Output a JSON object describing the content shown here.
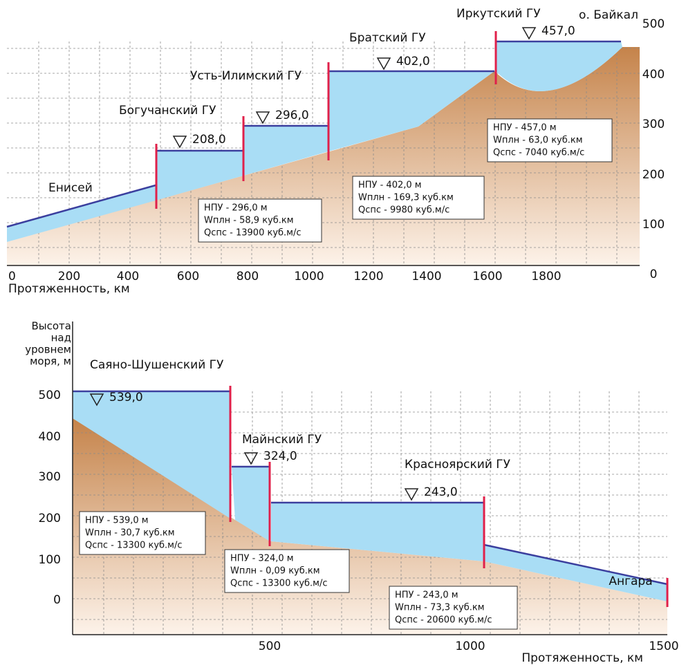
{
  "top_profile": {
    "river_label": "Енисей",
    "lake_label": "о. Байкал",
    "dams": [
      {
        "name": "Богучанский ГУ",
        "level": "208,0"
      },
      {
        "name": "Усть-Илимский ГУ",
        "level": "296,0"
      },
      {
        "name": "Братский ГУ",
        "level": "402,0"
      },
      {
        "name": "Иркутский ГУ",
        "level": "457,0"
      }
    ],
    "info_boxes": [
      [
        "НПУ - 296,0 м",
        "Wплн - 58,9 куб.км",
        "Qспс - 13900 куб.м/с"
      ],
      [
        "НПУ - 402,0 м",
        "Wплн - 169,3 куб.км",
        "Qспс - 9980 куб.м/с"
      ],
      [
        "НПУ - 457,0 м",
        "Wплн - 63,0 куб.км",
        "Qспс - 7040 куб.м/с"
      ]
    ],
    "y_ticks": [
      "500",
      "400",
      "300",
      "200",
      "100",
      "0"
    ],
    "x_ticks": [
      "0",
      "200",
      "400",
      "600",
      "800",
      "1000",
      "1200",
      "1400",
      "1600",
      "1800"
    ],
    "x_axis_title": "Протяженность, км"
  },
  "bottom_profile": {
    "river_label": "Ангара",
    "dams": [
      {
        "name": "Саяно-Шушенский ГУ",
        "level": "539,0"
      },
      {
        "name": "Майнский ГУ",
        "level": "324,0"
      },
      {
        "name": "Красноярский ГУ",
        "level": "243,0"
      }
    ],
    "info_boxes": [
      [
        "НПУ - 539,0 м",
        "Wплн - 30,7 куб.км",
        "Qспс - 13300 куб.м/с"
      ],
      [
        "НПУ - 324,0 м",
        "Wплн - 0,09 куб.км",
        "Qспс - 13300 куб.м/с"
      ],
      [
        "НПУ - 243,0 м",
        "Wплн - 73,3 куб.км",
        "Qспс - 20600 куб.м/с"
      ]
    ],
    "y_axis_title": [
      "Высота",
      "над",
      "уровнем",
      "моря, м"
    ],
    "y_ticks": [
      "500",
      "400",
      "300",
      "200",
      "100",
      "0"
    ],
    "x_ticks": [
      "500",
      "1000",
      "1500"
    ],
    "x_axis_title": "Протяженность, км"
  }
}
